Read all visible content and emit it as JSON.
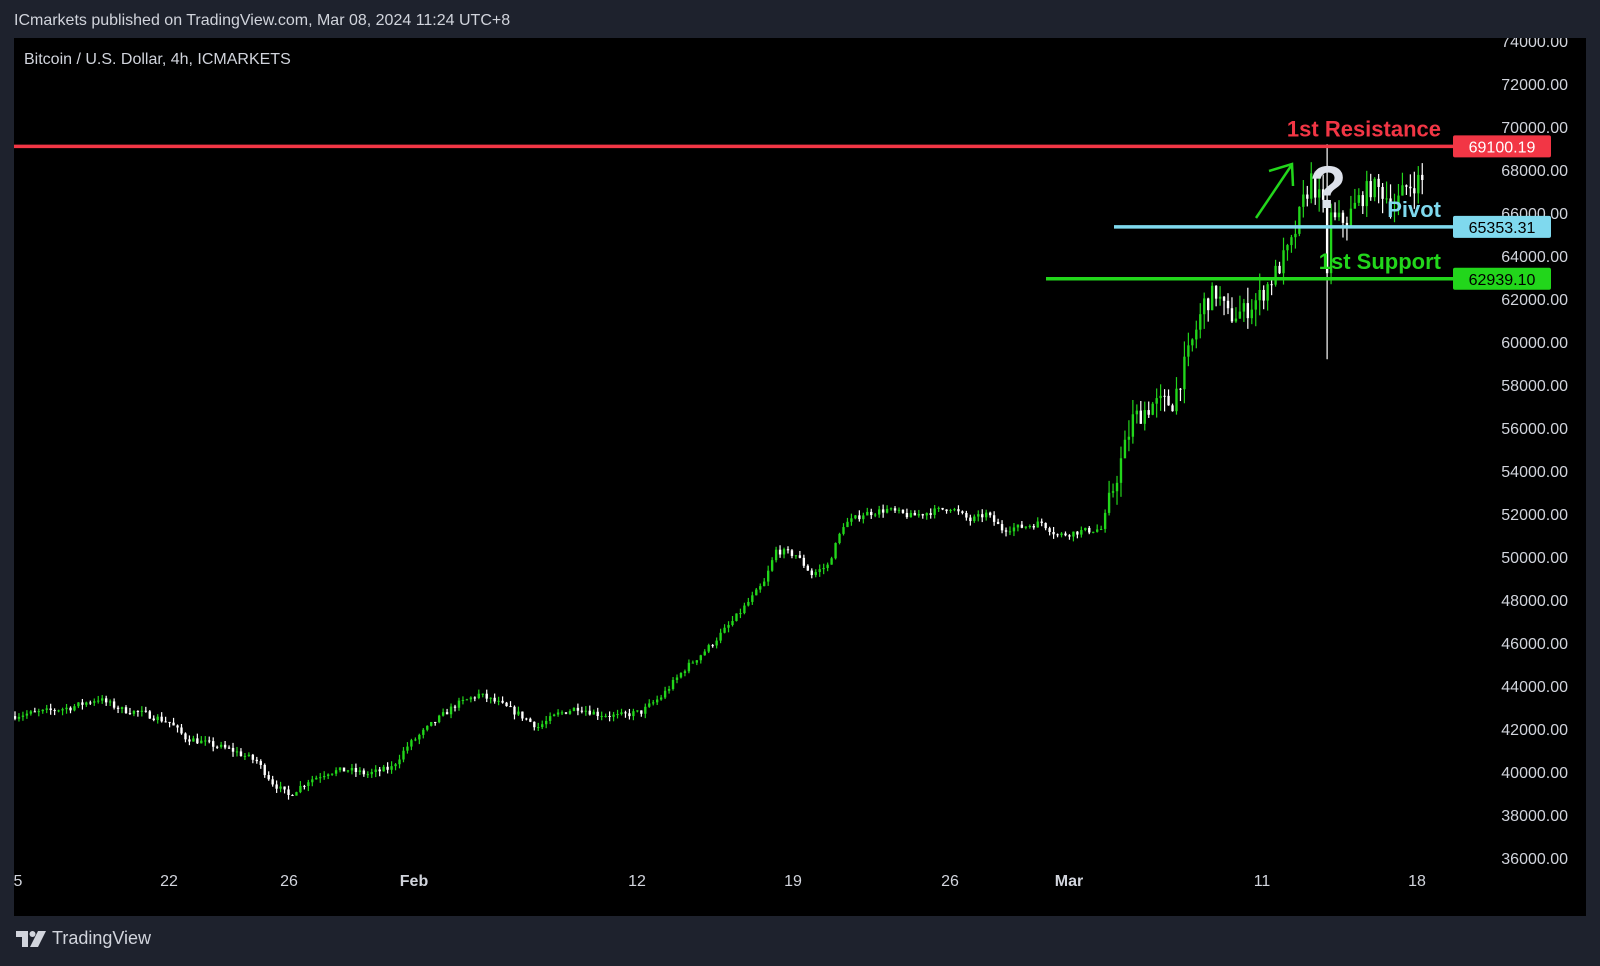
{
  "header": {
    "publisher_line": "ICmarkets published on TradingView.com, Mar 08, 2024 11:24 UTC+8"
  },
  "footer": {
    "logo_text": "TradingView"
  },
  "colors": {
    "background": "#000000",
    "up_candle": "#22d61b",
    "down_candle": "#ffffff",
    "resistance": "#f23645",
    "pivot": "#7fd9ee",
    "support": "#22d61b",
    "axis_text": "#d1d4dc"
  },
  "chart_data": {
    "type": "candlestick",
    "symbol_label": "Bitcoin / U.S. Dollar, 4h, ICMARKETS",
    "y_axis": {
      "range": [
        36000,
        74000
      ],
      "ticks": [
        "36000.00",
        "38000.00",
        "40000.00",
        "42000.00",
        "44000.00",
        "46000.00",
        "48000.00",
        "50000.00",
        "52000.00",
        "54000.00",
        "56000.00",
        "58000.00",
        "60000.00",
        "62000.00",
        "64000.00",
        "66000.00",
        "68000.00",
        "70000.00",
        "72000.00",
        "74000.00"
      ]
    },
    "x_axis": {
      "ticks": [
        {
          "label": "5",
          "bold": false
        },
        {
          "label": "22",
          "bold": false
        },
        {
          "label": "26",
          "bold": false
        },
        {
          "label": "Feb",
          "bold": true
        },
        {
          "label": "12",
          "bold": false
        },
        {
          "label": "19",
          "bold": false
        },
        {
          "label": "26",
          "bold": false
        },
        {
          "label": "Mar",
          "bold": true
        },
        {
          "label": "11",
          "bold": false
        },
        {
          "label": "18",
          "bold": false
        }
      ]
    },
    "levels": [
      {
        "name": "1st Resistance",
        "price": "69100.19",
        "value": 69100.19,
        "color": "#f23645"
      },
      {
        "name": "Pivot",
        "price": "65353.31",
        "value": 65353.31,
        "color": "#7fd9ee"
      },
      {
        "name": "1st Support",
        "price": "62939.10",
        "value": 62939.1,
        "color": "#22d61b"
      }
    ],
    "annotations": {
      "question_mark": "?"
    },
    "price_path": [
      [
        0,
        42600
      ],
      [
        8,
        42800
      ],
      [
        15,
        43000
      ],
      [
        22,
        43400
      ],
      [
        28,
        42900
      ],
      [
        34,
        42700
      ],
      [
        40,
        42300
      ],
      [
        44,
        41600
      ],
      [
        50,
        41300
      ],
      [
        56,
        41000
      ],
      [
        62,
        40500
      ],
      [
        66,
        39500
      ],
      [
        70,
        38900
      ],
      [
        75,
        39600
      ],
      [
        80,
        40000
      ],
      [
        85,
        40100
      ],
      [
        90,
        39900
      ],
      [
        96,
        40200
      ],
      [
        100,
        41200
      ],
      [
        106,
        42200
      ],
      [
        112,
        43100
      ],
      [
        118,
        43600
      ],
      [
        123,
        43200
      ],
      [
        128,
        42700
      ],
      [
        133,
        42100
      ],
      [
        138,
        42700
      ],
      [
        143,
        43000
      ],
      [
        148,
        42700
      ],
      [
        153,
        42600
      ],
      [
        159,
        42800
      ],
      [
        164,
        43500
      ],
      [
        170,
        44800
      ],
      [
        176,
        45800
      ],
      [
        182,
        47000
      ],
      [
        186,
        47900
      ],
      [
        190,
        48800
      ],
      [
        193,
        50300
      ],
      [
        198,
        50100
      ],
      [
        202,
        49200
      ],
      [
        206,
        49600
      ],
      [
        210,
        51500
      ],
      [
        215,
        52000
      ],
      [
        221,
        52200
      ],
      [
        227,
        51900
      ],
      [
        232,
        52100
      ],
      [
        237,
        52300
      ],
      [
        242,
        51700
      ],
      [
        246,
        52000
      ],
      [
        250,
        51300
      ],
      [
        255,
        51400
      ],
      [
        260,
        51600
      ],
      [
        264,
        51000
      ],
      [
        270,
        51200
      ],
      [
        275,
        51300
      ],
      [
        279,
        53800
      ],
      [
        283,
        56400
      ],
      [
        288,
        57100
      ],
      [
        293,
        57200
      ],
      [
        297,
        59400
      ],
      [
        301,
        61800
      ],
      [
        304,
        62300
      ],
      [
        307,
        61200
      ],
      [
        311,
        61400
      ],
      [
        315,
        62100
      ],
      [
        319,
        63200
      ],
      [
        323,
        64500
      ],
      [
        326,
        66500
      ],
      [
        328,
        67600
      ],
      [
        331,
        66200
      ],
      [
        334,
        65600
      ],
      [
        337,
        65700
      ],
      [
        340,
        66600
      ],
      [
        343,
        67200
      ],
      [
        346,
        67000
      ],
      [
        349,
        66300
      ],
      [
        352,
        67200
      ],
      [
        355,
        67500
      ]
    ]
  }
}
